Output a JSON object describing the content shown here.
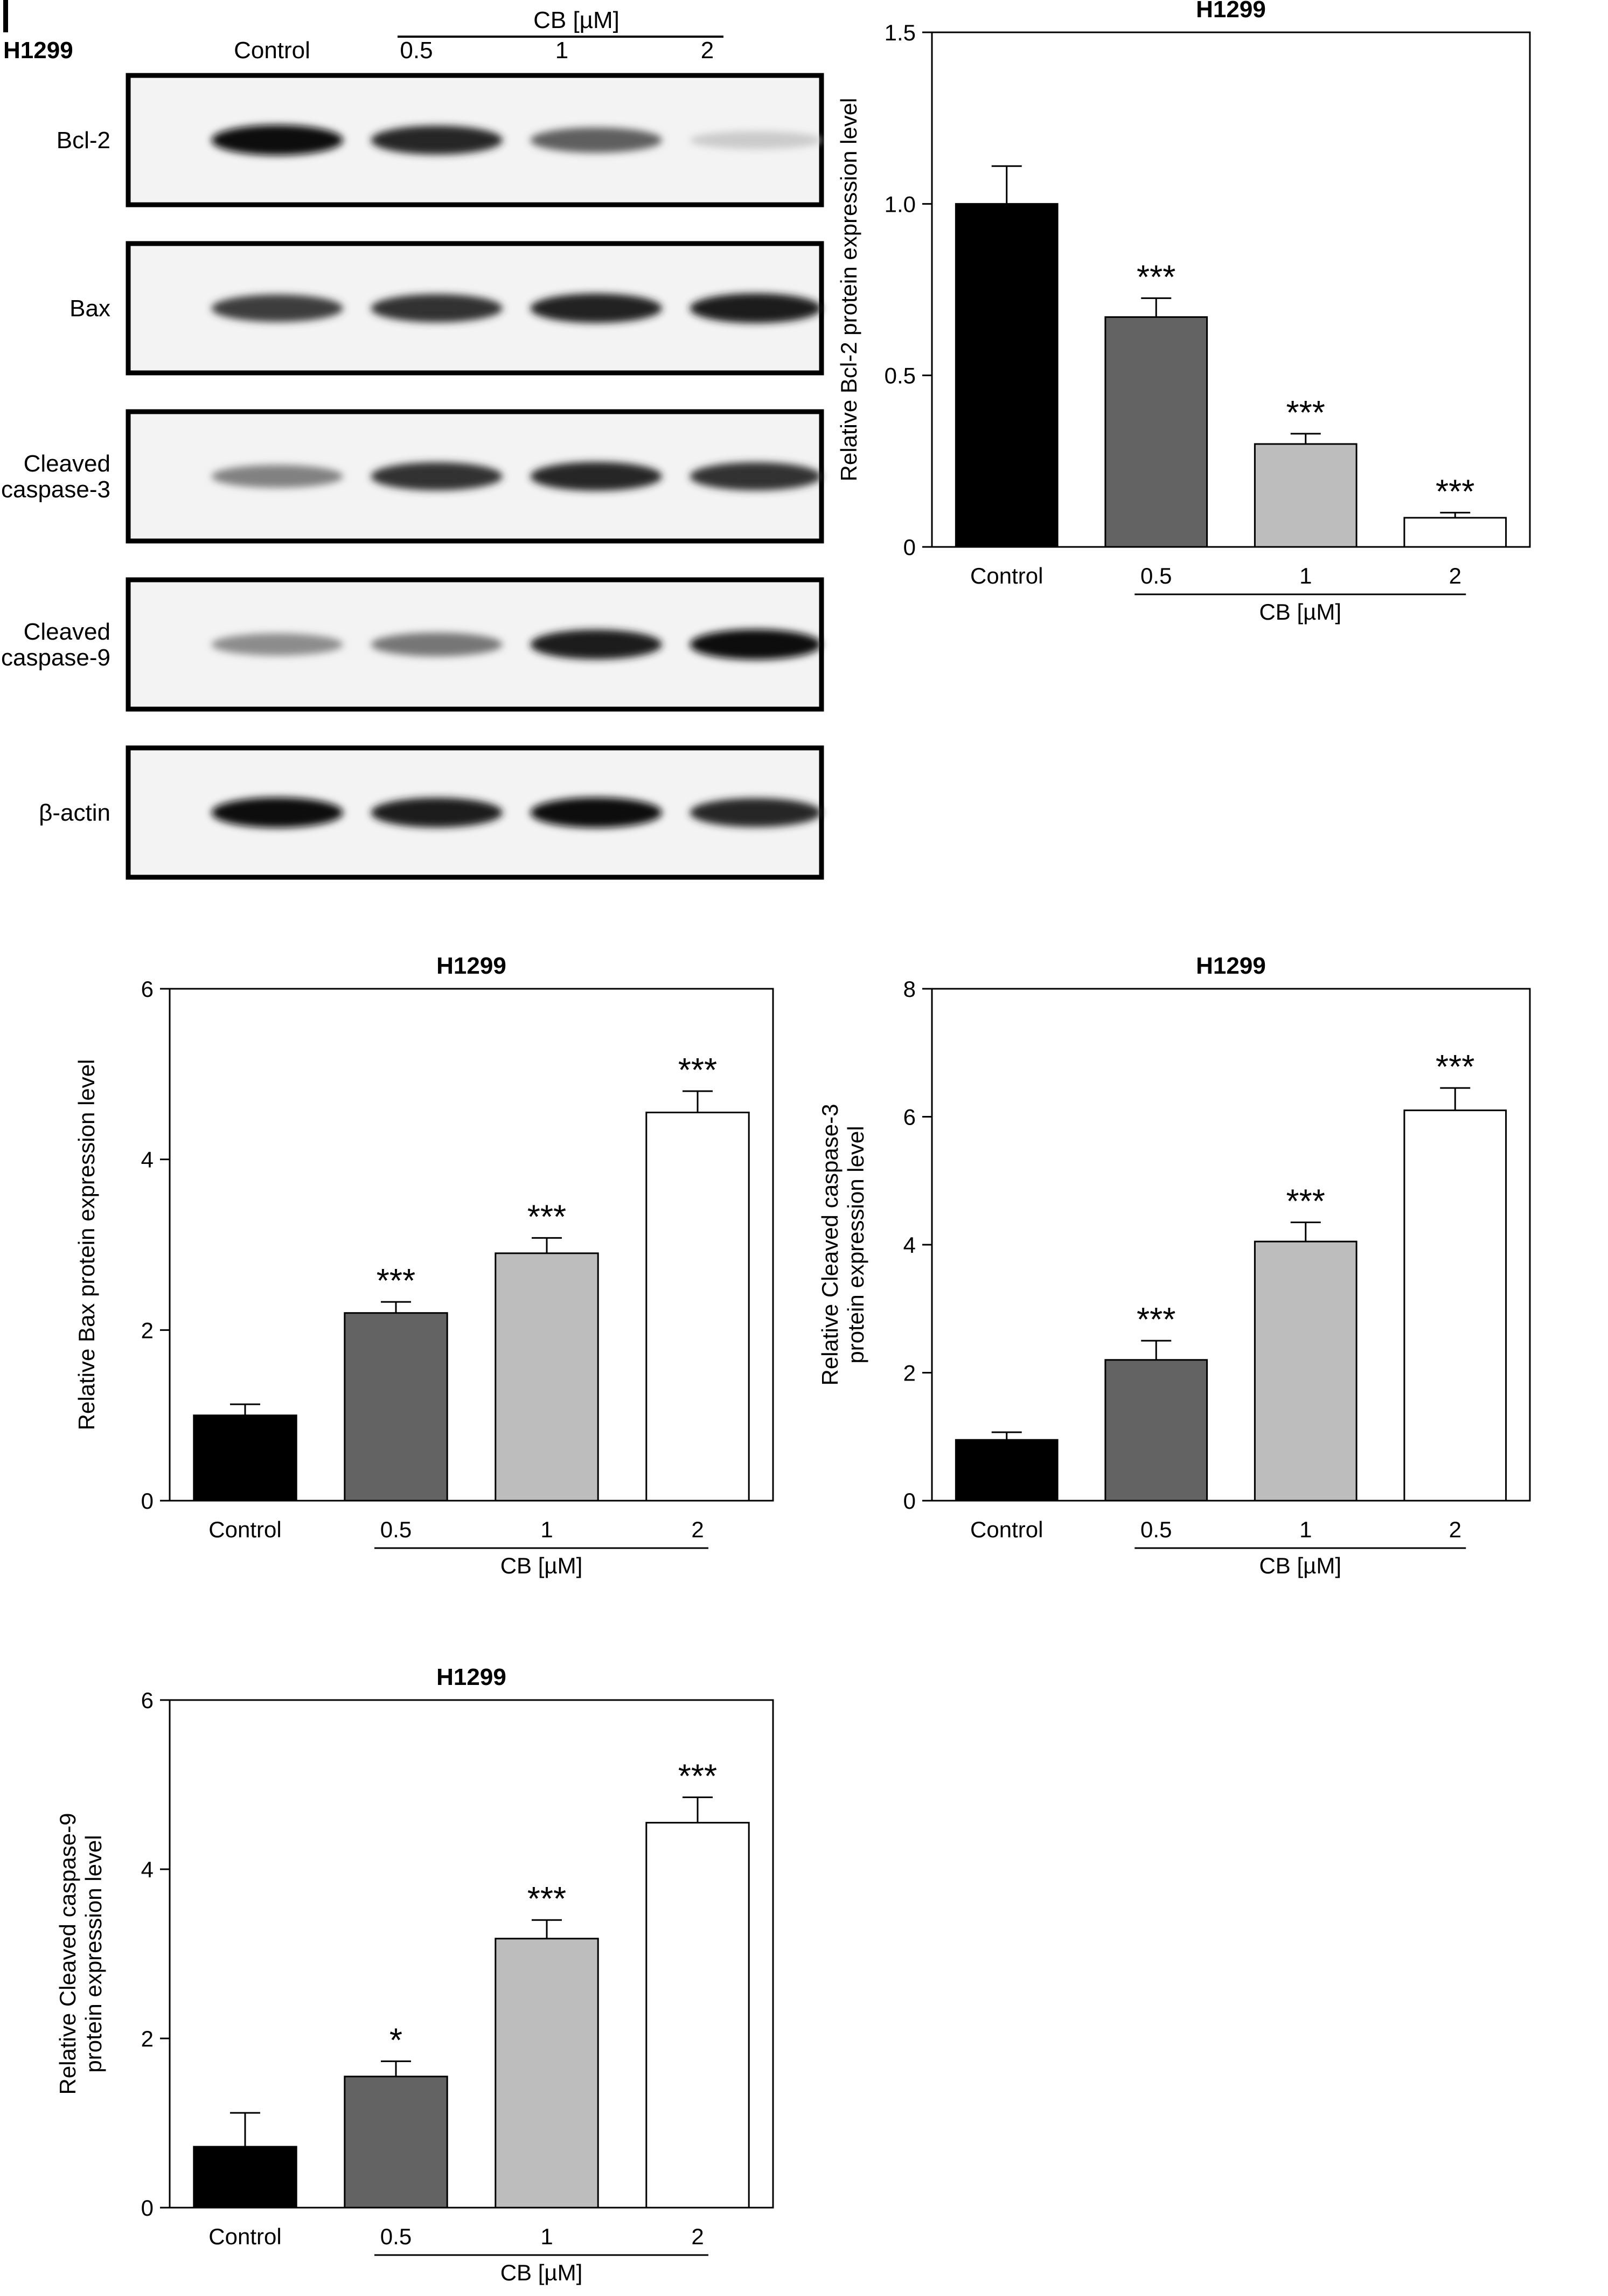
{
  "western_blot": {
    "panel_letter": "I",
    "cell_line": "H1299",
    "group_label": "CB [µM]",
    "lanes": [
      "Control",
      "0.5",
      "1",
      "2"
    ],
    "blots": [
      {
        "label_lines": [
          "Bcl-2"
        ],
        "band_intensity": [
          0.95,
          0.85,
          0.6,
          0.12
        ]
      },
      {
        "label_lines": [
          "Bax"
        ],
        "band_intensity": [
          0.75,
          0.8,
          0.88,
          0.9
        ]
      },
      {
        "label_lines": [
          "Cleaved",
          "caspase-3"
        ],
        "band_intensity": [
          0.45,
          0.8,
          0.85,
          0.8
        ]
      },
      {
        "label_lines": [
          "Cleaved",
          "caspase-9"
        ],
        "band_intensity": [
          0.4,
          0.5,
          0.9,
          0.95
        ]
      },
      {
        "label_lines": [
          "β-actin"
        ],
        "band_intensity": [
          0.95,
          0.9,
          0.95,
          0.85
        ]
      }
    ]
  },
  "chart_data": [
    {
      "type": "bar",
      "title": "H1299",
      "ylabel_lines": [
        "Relative Bcl-2 protein expression level"
      ],
      "categories": [
        "Control",
        "0.5",
        "1",
        "2"
      ],
      "group_label": "CB [µM]",
      "values": [
        1.0,
        0.67,
        0.3,
        0.085
      ],
      "errors": [
        0.11,
        0.055,
        0.03,
        0.015
      ],
      "significance": [
        "",
        "***",
        "***",
        "***"
      ],
      "ylim": [
        0,
        1.5
      ],
      "yticks": [
        0,
        0.5,
        1.0,
        1.5
      ],
      "ytick_labels": [
        "0",
        "0.5",
        "1.0",
        "1.5"
      ],
      "bar_colors": [
        "#000000",
        "#636363",
        "#bdbdbd",
        "#ffffff"
      ]
    },
    {
      "type": "bar",
      "title": "H1299",
      "ylabel_lines": [
        "Relative Bax protein expression level"
      ],
      "categories": [
        "Control",
        "0.5",
        "1",
        "2"
      ],
      "group_label": "CB [µM]",
      "values": [
        1.0,
        2.2,
        2.9,
        4.55
      ],
      "errors": [
        0.13,
        0.13,
        0.18,
        0.25
      ],
      "significance": [
        "",
        "***",
        "***",
        "***"
      ],
      "ylim": [
        0,
        6
      ],
      "yticks": [
        0,
        2,
        4,
        6
      ],
      "ytick_labels": [
        "0",
        "2",
        "4",
        "6"
      ],
      "bar_colors": [
        "#000000",
        "#636363",
        "#bdbdbd",
        "#ffffff"
      ]
    },
    {
      "type": "bar",
      "title": "H1299",
      "ylabel_lines": [
        "Relative Cleaved caspase-3",
        "protein expression level"
      ],
      "categories": [
        "Control",
        "0.5",
        "1",
        "2"
      ],
      "group_label": "CB [µM]",
      "values": [
        0.95,
        2.2,
        4.05,
        6.1
      ],
      "errors": [
        0.12,
        0.3,
        0.3,
        0.35
      ],
      "significance": [
        "",
        "***",
        "***",
        "***"
      ],
      "ylim": [
        0,
        8
      ],
      "yticks": [
        0,
        2,
        4,
        6,
        8
      ],
      "ytick_labels": [
        "0",
        "2",
        "4",
        "6",
        "8"
      ],
      "bar_colors": [
        "#000000",
        "#636363",
        "#bdbdbd",
        "#ffffff"
      ]
    },
    {
      "type": "bar",
      "title": "H1299",
      "ylabel_lines": [
        "Relative Cleaved caspase-9",
        "protein expression level"
      ],
      "categories": [
        "Control",
        "0.5",
        "1",
        "2"
      ],
      "group_label": "CB [µM]",
      "values": [
        0.72,
        1.55,
        3.18,
        4.55
      ],
      "errors": [
        0.4,
        0.18,
        0.22,
        0.3
      ],
      "significance": [
        "",
        "*",
        "***",
        "***"
      ],
      "ylim": [
        0,
        6
      ],
      "yticks": [
        0,
        2,
        4,
        6
      ],
      "ytick_labels": [
        "0",
        "2",
        "4",
        "6"
      ],
      "bar_colors": [
        "#000000",
        "#636363",
        "#bdbdbd",
        "#ffffff"
      ]
    }
  ]
}
